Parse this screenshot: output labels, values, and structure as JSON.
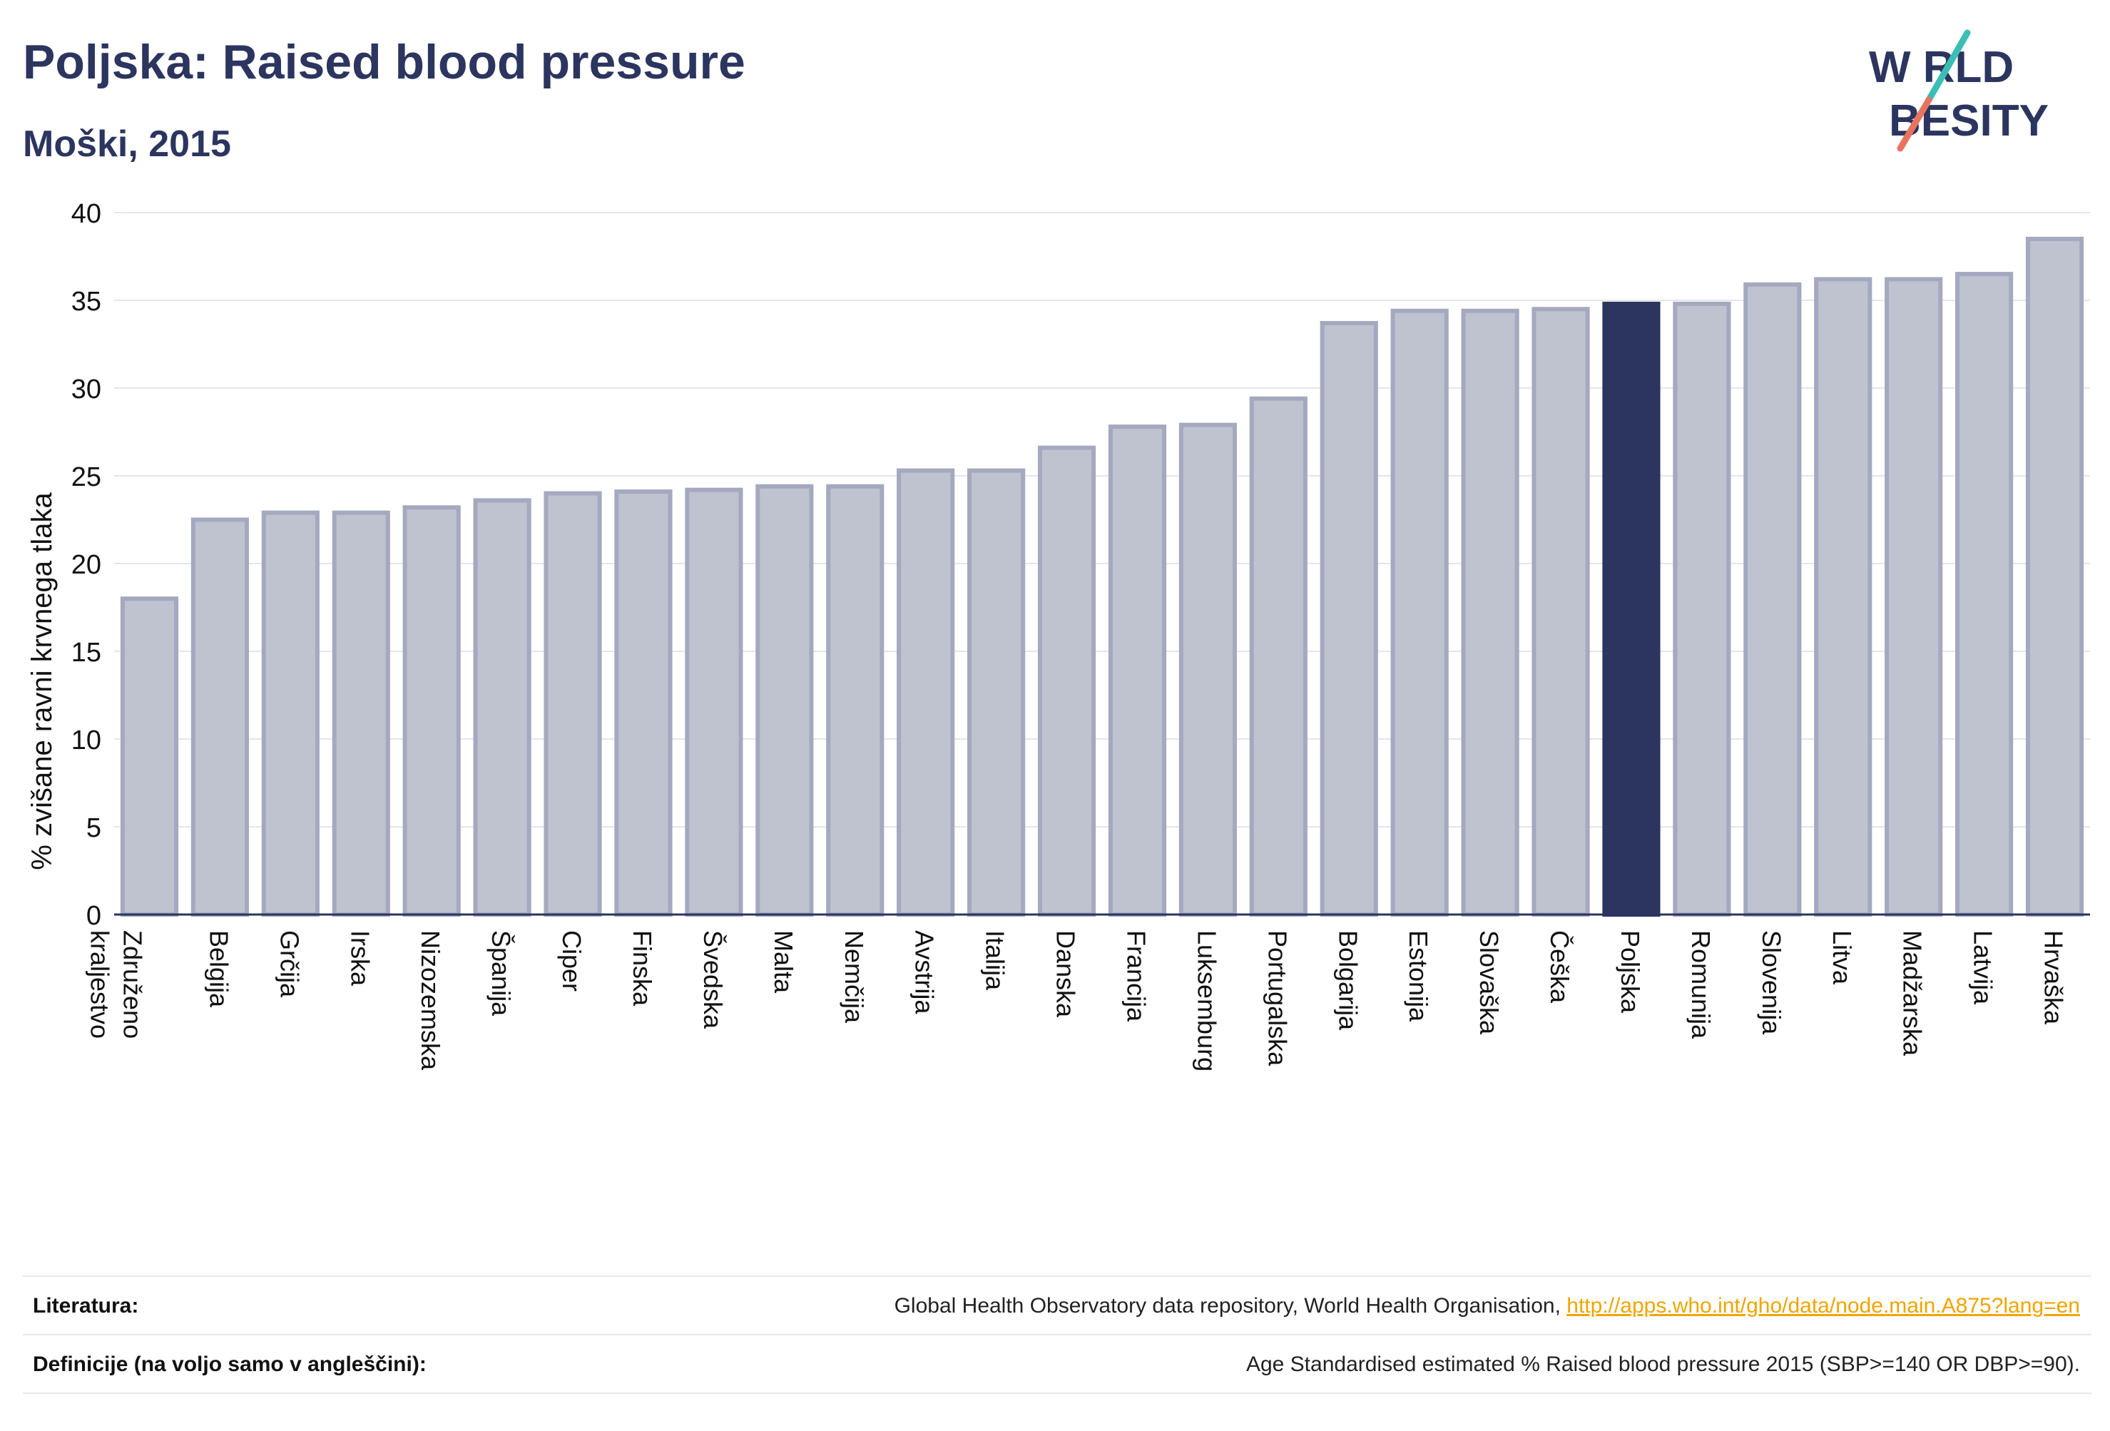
{
  "header": {
    "title": "Poljska: Raised blood pressure",
    "subtitle": "Moški, 2015"
  },
  "logo": {
    "line1": "W RLD",
    "line2": "BESITY",
    "text": "WORLD OBESITY",
    "colors": {
      "navy": "#2b355f",
      "teal": "#3bbfb5",
      "coral": "#e8735f"
    }
  },
  "colors": {
    "bar_fill": "#bfc2cf",
    "bar_stroke": "#a4a9bf",
    "highlight_fill": "#2b355f",
    "grid": "#e4e6ee",
    "axis": "#2b355f"
  },
  "chart_data": {
    "type": "bar",
    "title": "Poljska: Raised blood pressure",
    "subtitle": "Moški, 2015",
    "xlabel": "",
    "ylabel": "% zvišane ravni krvnega tlaka",
    "ylim": [
      0,
      40
    ],
    "yticks": [
      0,
      5,
      10,
      15,
      20,
      25,
      30,
      35,
      40
    ],
    "grid": true,
    "highlight": "Poljska",
    "categories": [
      "Združeno kraljestvo",
      "Belgija",
      "Grčija",
      "Irska",
      "Nizozemska",
      "Španija",
      "Ciper",
      "Finska",
      "Švedska",
      "Malta",
      "Nemčija",
      "Avstrija",
      "Italija",
      "Danska",
      "Francija",
      "Luksemburg",
      "Portugalska",
      "Bolgarija",
      "Estonija",
      "Slovaška",
      "Češka",
      "Poljska",
      "Romunija",
      "Slovenija",
      "Litva",
      "Madžarska",
      "Latvija",
      "Hrvaška"
    ],
    "values": [
      18.0,
      22.5,
      22.9,
      22.9,
      23.2,
      23.6,
      24.0,
      24.1,
      24.2,
      24.4,
      24.4,
      25.3,
      25.3,
      26.6,
      27.8,
      27.9,
      29.4,
      33.7,
      34.4,
      34.4,
      34.5,
      34.8,
      34.8,
      35.9,
      36.2,
      36.2,
      36.5,
      38.5
    ]
  },
  "footer": {
    "literatura_label": "Literatura:",
    "literatura_text": "Global Health Observatory data repository, World Health Organisation, ",
    "literatura_link": "http://apps.who.int/gho/data/node.main.A875?lang=en",
    "definicije_label": "Definicije (na voljo samo v angleščini):",
    "definicije_text": "Age Standardised estimated % Raised blood pressure 2015 (SBP>=140 OR DBP>=90)."
  }
}
